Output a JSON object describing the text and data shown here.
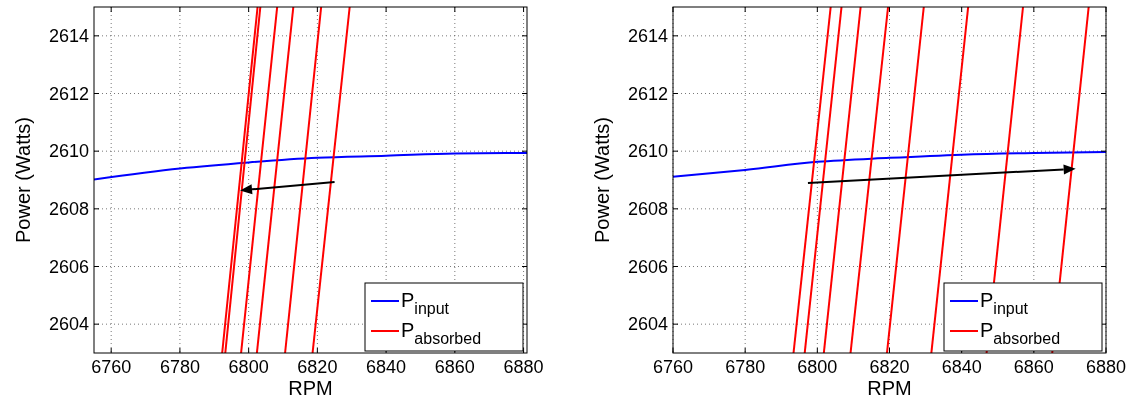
{
  "chart_data": [
    {
      "type": "line",
      "xlabel": "RPM",
      "ylabel": "Power (Watts)",
      "xlim": [
        6755,
        6881
      ],
      "ylim": [
        2603,
        2615
      ],
      "xticks": [
        6760,
        6780,
        6800,
        6820,
        6840,
        6860,
        6880
      ],
      "yticks": [
        2604,
        2606,
        2608,
        2610,
        2612,
        2614
      ],
      "grid": true,
      "legend": "bottom right",
      "series": [
        {
          "name": "P$_{input}$",
          "color": "#0000ff",
          "x": [
            6755,
            6780,
            6800,
            6820,
            6840,
            6860,
            6881
          ],
          "values": [
            2609.02,
            2609.4,
            2609.61,
            2609.77,
            2609.84,
            2609.92,
            2609.94
          ]
        },
        {
          "name": "P$_{absorbed}$",
          "color": "#ff0000",
          "x": [
            6792.3,
            6802.6
          ],
          "values": [
            2603,
            2615
          ]
        },
        {
          "color": "#ff0000",
          "x": [
            6793.2,
            6803.4
          ],
          "values": [
            2603,
            2615
          ]
        },
        {
          "color": "#ff0000",
          "x": [
            6797.8,
            6808.3
          ],
          "values": [
            2603,
            2615
          ]
        },
        {
          "color": "#ff0000",
          "x": [
            6802.4,
            6813.0
          ],
          "values": [
            2603,
            2615
          ]
        },
        {
          "color": "#ff0000",
          "x": [
            6810.6,
            6821.1
          ],
          "values": [
            2603,
            2615
          ]
        },
        {
          "color": "#ff0000",
          "x": [
            6818.6,
            6829.4
          ],
          "values": [
            2603,
            2615
          ]
        }
      ]
    },
    {
      "type": "line",
      "xlabel": "RPM",
      "ylabel": "Power (Watts)",
      "xlim": [
        6760,
        6880
      ],
      "ylim": [
        2603,
        2615
      ],
      "xticks": [
        6760,
        6780,
        6800,
        6820,
        6840,
        6860,
        6880
      ],
      "yticks": [
        2604,
        2606,
        2608,
        2610,
        2612,
        2614
      ],
      "grid": true,
      "legend": "bottom right",
      "series": [
        {
          "name": "P$_{input}$",
          "color": "#0000ff",
          "x": [
            6760,
            6780,
            6800,
            6820,
            6840,
            6860,
            6880
          ],
          "values": [
            2609.11,
            2609.35,
            2609.63,
            2609.77,
            2609.88,
            2609.94,
            2609.97
          ]
        },
        {
          "name": "P$_{absorbed}$",
          "color": "#ff0000",
          "x": [
            6793.4,
            6803.7
          ],
          "values": [
            2603,
            2615
          ]
        },
        {
          "color": "#ff0000",
          "x": [
            6796.5,
            6806.7
          ],
          "values": [
            2603,
            2615
          ]
        },
        {
          "color": "#ff0000",
          "x": [
            6801.8,
            6812.0
          ],
          "values": [
            2603,
            2615
          ]
        },
        {
          "color": "#ff0000",
          "x": [
            6809.2,
            6819.6
          ],
          "values": [
            2603,
            2615
          ]
        },
        {
          "color": "#ff0000",
          "x": [
            6819.3,
            6829.5
          ],
          "values": [
            2603,
            2615
          ]
        },
        {
          "color": "#ff0000",
          "x": [
            6831.6,
            6841.8
          ],
          "values": [
            2603,
            2615
          ]
        },
        {
          "color": "#ff0000",
          "x": [
            6846.9,
            6857.0
          ],
          "values": [
            2603,
            2615
          ]
        },
        {
          "color": "#ff0000",
          "x": [
            6865.1,
            6875.2
          ],
          "values": [
            2603,
            2615
          ]
        }
      ]
    }
  ]
}
